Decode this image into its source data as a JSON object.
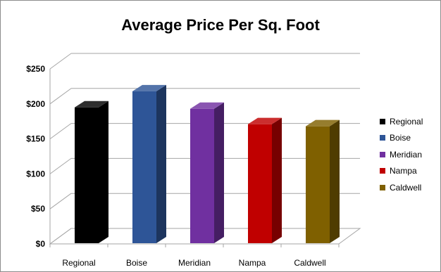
{
  "chart_data": {
    "type": "bar",
    "title": "Average Price Per Sq. Foot",
    "categories": [
      "Regional",
      "Boise",
      "Meridian",
      "Nampa",
      "Caldwell"
    ],
    "values": [
      195,
      218,
      193,
      171,
      168
    ],
    "colors": [
      "#000000",
      "#2e5597",
      "#7030a0",
      "#c00000",
      "#7f6000"
    ],
    "y_ticks": [
      "$0",
      "$50",
      "$100",
      "$150",
      "$200",
      "$250"
    ],
    "ylim": [
      0,
      250
    ],
    "grid": true,
    "legend_position": "right",
    "style": "3d-column"
  }
}
